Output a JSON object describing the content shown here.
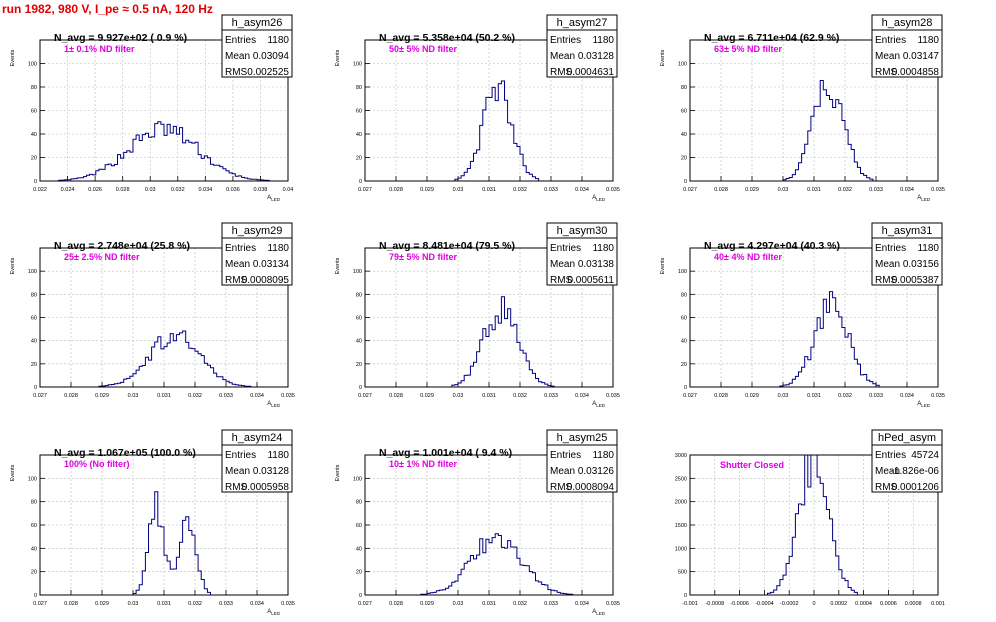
{
  "page": {
    "title": "run 1982,   980 V, I_pe ≈ 0.5 nA, 120 Hz"
  },
  "colors": {
    "title": "#e00000",
    "annotation": "#e000e0",
    "histogram": "#000080",
    "grid": "#bbbbbb",
    "axis": "#000000"
  },
  "stats_labels": {
    "entries": "Entries",
    "mean": "Mean",
    "rms": "RMS"
  },
  "chart_data": [
    {
      "type": "histogram",
      "name": "h_asym26",
      "navg": "N_avg = 9.927e+02 ( 0.9 %)",
      "annotation": "1± 0.1% ND filter",
      "stats": {
        "entries": "1180",
        "mean": "0.03094",
        "rms": "0.002525"
      },
      "xlabel": "A_LED",
      "ylabel": "Events",
      "grid": true,
      "xlim": [
        0.022,
        0.04
      ],
      "ylim": [
        0,
        120
      ],
      "xticks": [
        "0.022",
        "0.024",
        "0.026",
        "0.028",
        "0.03",
        "0.032",
        "0.034",
        "0.036",
        "0.038",
        "0.04"
      ],
      "yticks": [
        "0",
        "20",
        "40",
        "60",
        "80",
        "100"
      ],
      "hist": {
        "mean": 0.03094,
        "sigma": 0.002525,
        "peak": 44
      }
    },
    {
      "type": "histogram",
      "name": "h_asym27",
      "navg": "N_avg = 5.358e+04 (50.2 %)",
      "annotation": "50± 5% ND filter",
      "stats": {
        "entries": "1180",
        "mean": "0.03128",
        "rms": "0.0004631"
      },
      "xlabel": "A_LED",
      "ylabel": "Events",
      "grid": true,
      "xlim": [
        0.027,
        0.035
      ],
      "ylim": [
        0,
        120
      ],
      "xticks": [
        "0.027",
        "0.028",
        "0.029",
        "0.03",
        "0.031",
        "0.032",
        "0.033",
        "0.034",
        "0.035"
      ],
      "yticks": [
        "0",
        "20",
        "40",
        "60",
        "80",
        "100"
      ],
      "hist": {
        "mean": 0.03128,
        "sigma": 0.0004631,
        "peak": 80
      }
    },
    {
      "type": "histogram",
      "name": "h_asym28",
      "navg": "N_avg = 6.711e+04 (62.9 %)",
      "annotation": "63± 5% ND filter",
      "stats": {
        "entries": "1180",
        "mean": "0.03147",
        "rms": "0.0004858"
      },
      "xlabel": "A_LED",
      "ylabel": "Events",
      "grid": true,
      "xlim": [
        0.027,
        0.035
      ],
      "ylim": [
        0,
        120
      ],
      "xticks": [
        "0.027",
        "0.028",
        "0.029",
        "0.03",
        "0.031",
        "0.032",
        "0.033",
        "0.034",
        "0.035"
      ],
      "yticks": [
        "0",
        "20",
        "40",
        "60",
        "80",
        "100"
      ],
      "hist": {
        "mean": 0.03147,
        "sigma": 0.0004858,
        "peak": 82
      }
    },
    {
      "type": "histogram",
      "name": "h_asym29",
      "navg": "N_avg = 2.748e+04 (25.8 %)",
      "annotation": "25± 2.5% ND filter",
      "stats": {
        "entries": "1180",
        "mean": "0.03134",
        "rms": "0.0008095"
      },
      "xlabel": "A_LED",
      "ylabel": "Events",
      "grid": true,
      "xlim": [
        0.027,
        0.035
      ],
      "ylim": [
        0,
        120
      ],
      "xticks": [
        "0.027",
        "0.028",
        "0.029",
        "0.03",
        "0.031",
        "0.032",
        "0.033",
        "0.034",
        "0.035"
      ],
      "yticks": [
        "0",
        "20",
        "40",
        "60",
        "80",
        "100"
      ],
      "hist": {
        "mean": 0.03134,
        "sigma": 0.0008095,
        "peak": 44
      }
    },
    {
      "type": "histogram",
      "name": "h_asym30",
      "navg": "N_avg = 8.481e+04 (79.5 %)",
      "annotation": "79± 5% ND filter",
      "stats": {
        "entries": "1180",
        "mean": "0.03138",
        "rms": "0.0005611"
      },
      "xlabel": "A_LED",
      "ylabel": "Events",
      "grid": true,
      "xlim": [
        0.027,
        0.035
      ],
      "ylim": [
        0,
        120
      ],
      "xticks": [
        "0.027",
        "0.028",
        "0.029",
        "0.03",
        "0.031",
        "0.032",
        "0.033",
        "0.034",
        "0.035"
      ],
      "yticks": [
        "0",
        "20",
        "40",
        "60",
        "80",
        "100"
      ],
      "hist": {
        "mean": 0.03138,
        "sigma": 0.0005611,
        "peak": 66
      }
    },
    {
      "type": "histogram",
      "name": "h_asym31",
      "navg": "N_avg = 4.297e+04 (40.3 %)",
      "annotation": "40± 4% ND filter",
      "stats": {
        "entries": "1180",
        "mean": "0.03156",
        "rms": "0.0005387"
      },
      "xlabel": "A_LED",
      "ylabel": "Events",
      "grid": true,
      "xlim": [
        0.027,
        0.035
      ],
      "ylim": [
        0,
        120
      ],
      "xticks": [
        "0.027",
        "0.028",
        "0.029",
        "0.03",
        "0.031",
        "0.032",
        "0.033",
        "0.034",
        "0.035"
      ],
      "yticks": [
        "0",
        "20",
        "40",
        "60",
        "80",
        "100"
      ],
      "hist": {
        "mean": 0.03156,
        "sigma": 0.0005387,
        "peak": 70
      }
    },
    {
      "type": "histogram",
      "name": "h_asym24",
      "navg": "N_avg = 1.067e+05 (100.0 %)",
      "annotation": "100% (No filter)",
      "stats": {
        "entries": "1180",
        "mean": "0.03128",
        "rms": "0.0005958"
      },
      "xlabel": "A_LED",
      "ylabel": "Events",
      "grid": true,
      "xlim": [
        0.027,
        0.035
      ],
      "ylim": [
        0,
        120
      ],
      "xticks": [
        "0.027",
        "0.028",
        "0.029",
        "0.03",
        "0.031",
        "0.032",
        "0.033",
        "0.034",
        "0.035"
      ],
      "yticks": [
        "0",
        "20",
        "40",
        "60",
        "80",
        "100"
      ],
      "hist": {
        "mean": 0.03128,
        "sigma": 0.0005958,
        "peak": 76,
        "double": true
      }
    },
    {
      "type": "histogram",
      "name": "h_asym25",
      "navg": "N_avg = 1.001e+04 ( 9.4 %)",
      "annotation": "10± 1% ND filter",
      "stats": {
        "entries": "1180",
        "mean": "0.03126",
        "rms": "0.0008094"
      },
      "xlabel": "A_LED",
      "ylabel": "Events",
      "grid": true,
      "xlim": [
        0.027,
        0.035
      ],
      "ylim": [
        0,
        120
      ],
      "xticks": [
        "0.027",
        "0.028",
        "0.029",
        "0.03",
        "0.031",
        "0.032",
        "0.033",
        "0.034",
        "0.035"
      ],
      "yticks": [
        "0",
        "20",
        "40",
        "60",
        "80",
        "100"
      ],
      "hist": {
        "mean": 0.03126,
        "sigma": 0.0008094,
        "peak": 50
      }
    },
    {
      "type": "histogram",
      "name": "hPed_asym",
      "navg": "",
      "annotation": "Shutter Closed",
      "stats": {
        "entries": "45724",
        "mean": "-1.826e-06",
        "rms": "0.0001206"
      },
      "xlabel": "",
      "ylabel": "",
      "grid": true,
      "xlim": [
        -0.001,
        0.001
      ],
      "ylim": [
        0,
        3000
      ],
      "xticks": [
        "-0.001",
        "-0.0008",
        "-0.0006",
        "-0.0004",
        "-0.0002",
        "0",
        "0.0002",
        "0.0004",
        "0.0006",
        "0.0008",
        "0.001"
      ],
      "yticks": [
        "0",
        "500",
        "1000",
        "1500",
        "2000",
        "2500",
        "3000"
      ],
      "hist": {
        "mean": -1.826e-06,
        "sigma": 0.0001206,
        "peak": 2900
      }
    }
  ]
}
